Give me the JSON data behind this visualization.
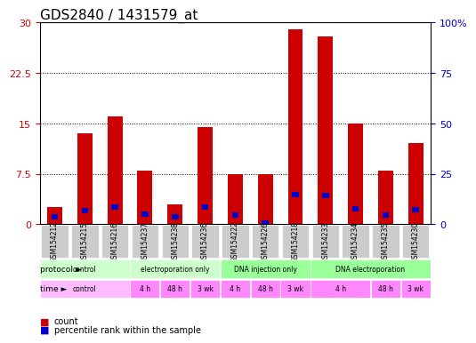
{
  "title": "GDS2840 / 1431579_at",
  "samples": [
    "GSM154212",
    "GSM154215",
    "GSM154216",
    "GSM154237",
    "GSM154238",
    "GSM154236",
    "GSM154222",
    "GSM154226",
    "GSM154218",
    "GSM154233",
    "GSM154234",
    "GSM154235",
    "GSM154230"
  ],
  "count_values": [
    2.5,
    13.5,
    16.0,
    8.0,
    3.0,
    14.5,
    7.5,
    7.5,
    29.0,
    28.0,
    15.0,
    8.0,
    12.0
  ],
  "percentile_values": [
    3.5,
    6.5,
    8.5,
    5.0,
    3.5,
    8.5,
    4.5,
    0.5,
    14.5,
    14.0,
    7.5,
    4.5,
    7.0
  ],
  "ylim_left": [
    0,
    30
  ],
  "ylim_right": [
    0,
    100
  ],
  "yticks_left": [
    0,
    7.5,
    15,
    22.5,
    30
  ],
  "yticks_right": [
    0,
    25,
    50,
    75,
    100
  ],
  "bar_color": "#cc0000",
  "percentile_color": "#0000cc",
  "bar_width": 0.5,
  "protocol_groups": [
    {
      "label": "control",
      "start": 0,
      "end": 3,
      "color": "#ccffcc"
    },
    {
      "label": "electroporation only",
      "start": 3,
      "end": 6,
      "color": "#ccffcc"
    },
    {
      "label": "DNA injection only",
      "start": 6,
      "end": 9,
      "color": "#99ff99"
    },
    {
      "label": "DNA electroporation",
      "start": 9,
      "end": 13,
      "color": "#99ff99"
    }
  ],
  "time_groups": [
    {
      "label": "control",
      "start": 0,
      "end": 3,
      "color": "#ffaaff"
    },
    {
      "label": "4 h",
      "start": 3,
      "end": 4,
      "color": "#ffaaff"
    },
    {
      "label": "48 h",
      "start": 4,
      "end": 5,
      "color": "#ff88ff"
    },
    {
      "label": "3 wk",
      "start": 5,
      "end": 6,
      "color": "#ff88ff"
    },
    {
      "label": "4 h",
      "start": 6,
      "end": 7,
      "color": "#ffaaff"
    },
    {
      "label": "48 h",
      "start": 7,
      "end": 8,
      "color": "#ff88ff"
    },
    {
      "label": "3 wk",
      "start": 8,
      "end": 9,
      "color": "#ff88ff"
    },
    {
      "label": "4 h",
      "start": 9,
      "end": 11,
      "color": "#ffaaff"
    },
    {
      "label": "48 h",
      "start": 11,
      "end": 12,
      "color": "#ff88ff"
    },
    {
      "label": "3 wk",
      "start": 12,
      "end": 13,
      "color": "#ff88ff"
    }
  ],
  "xticklabel_bg": "#cccccc",
  "dotted_line_color": "#555555",
  "title_fontsize": 11,
  "axis_label_fontsize": 8,
  "tick_fontsize": 8
}
